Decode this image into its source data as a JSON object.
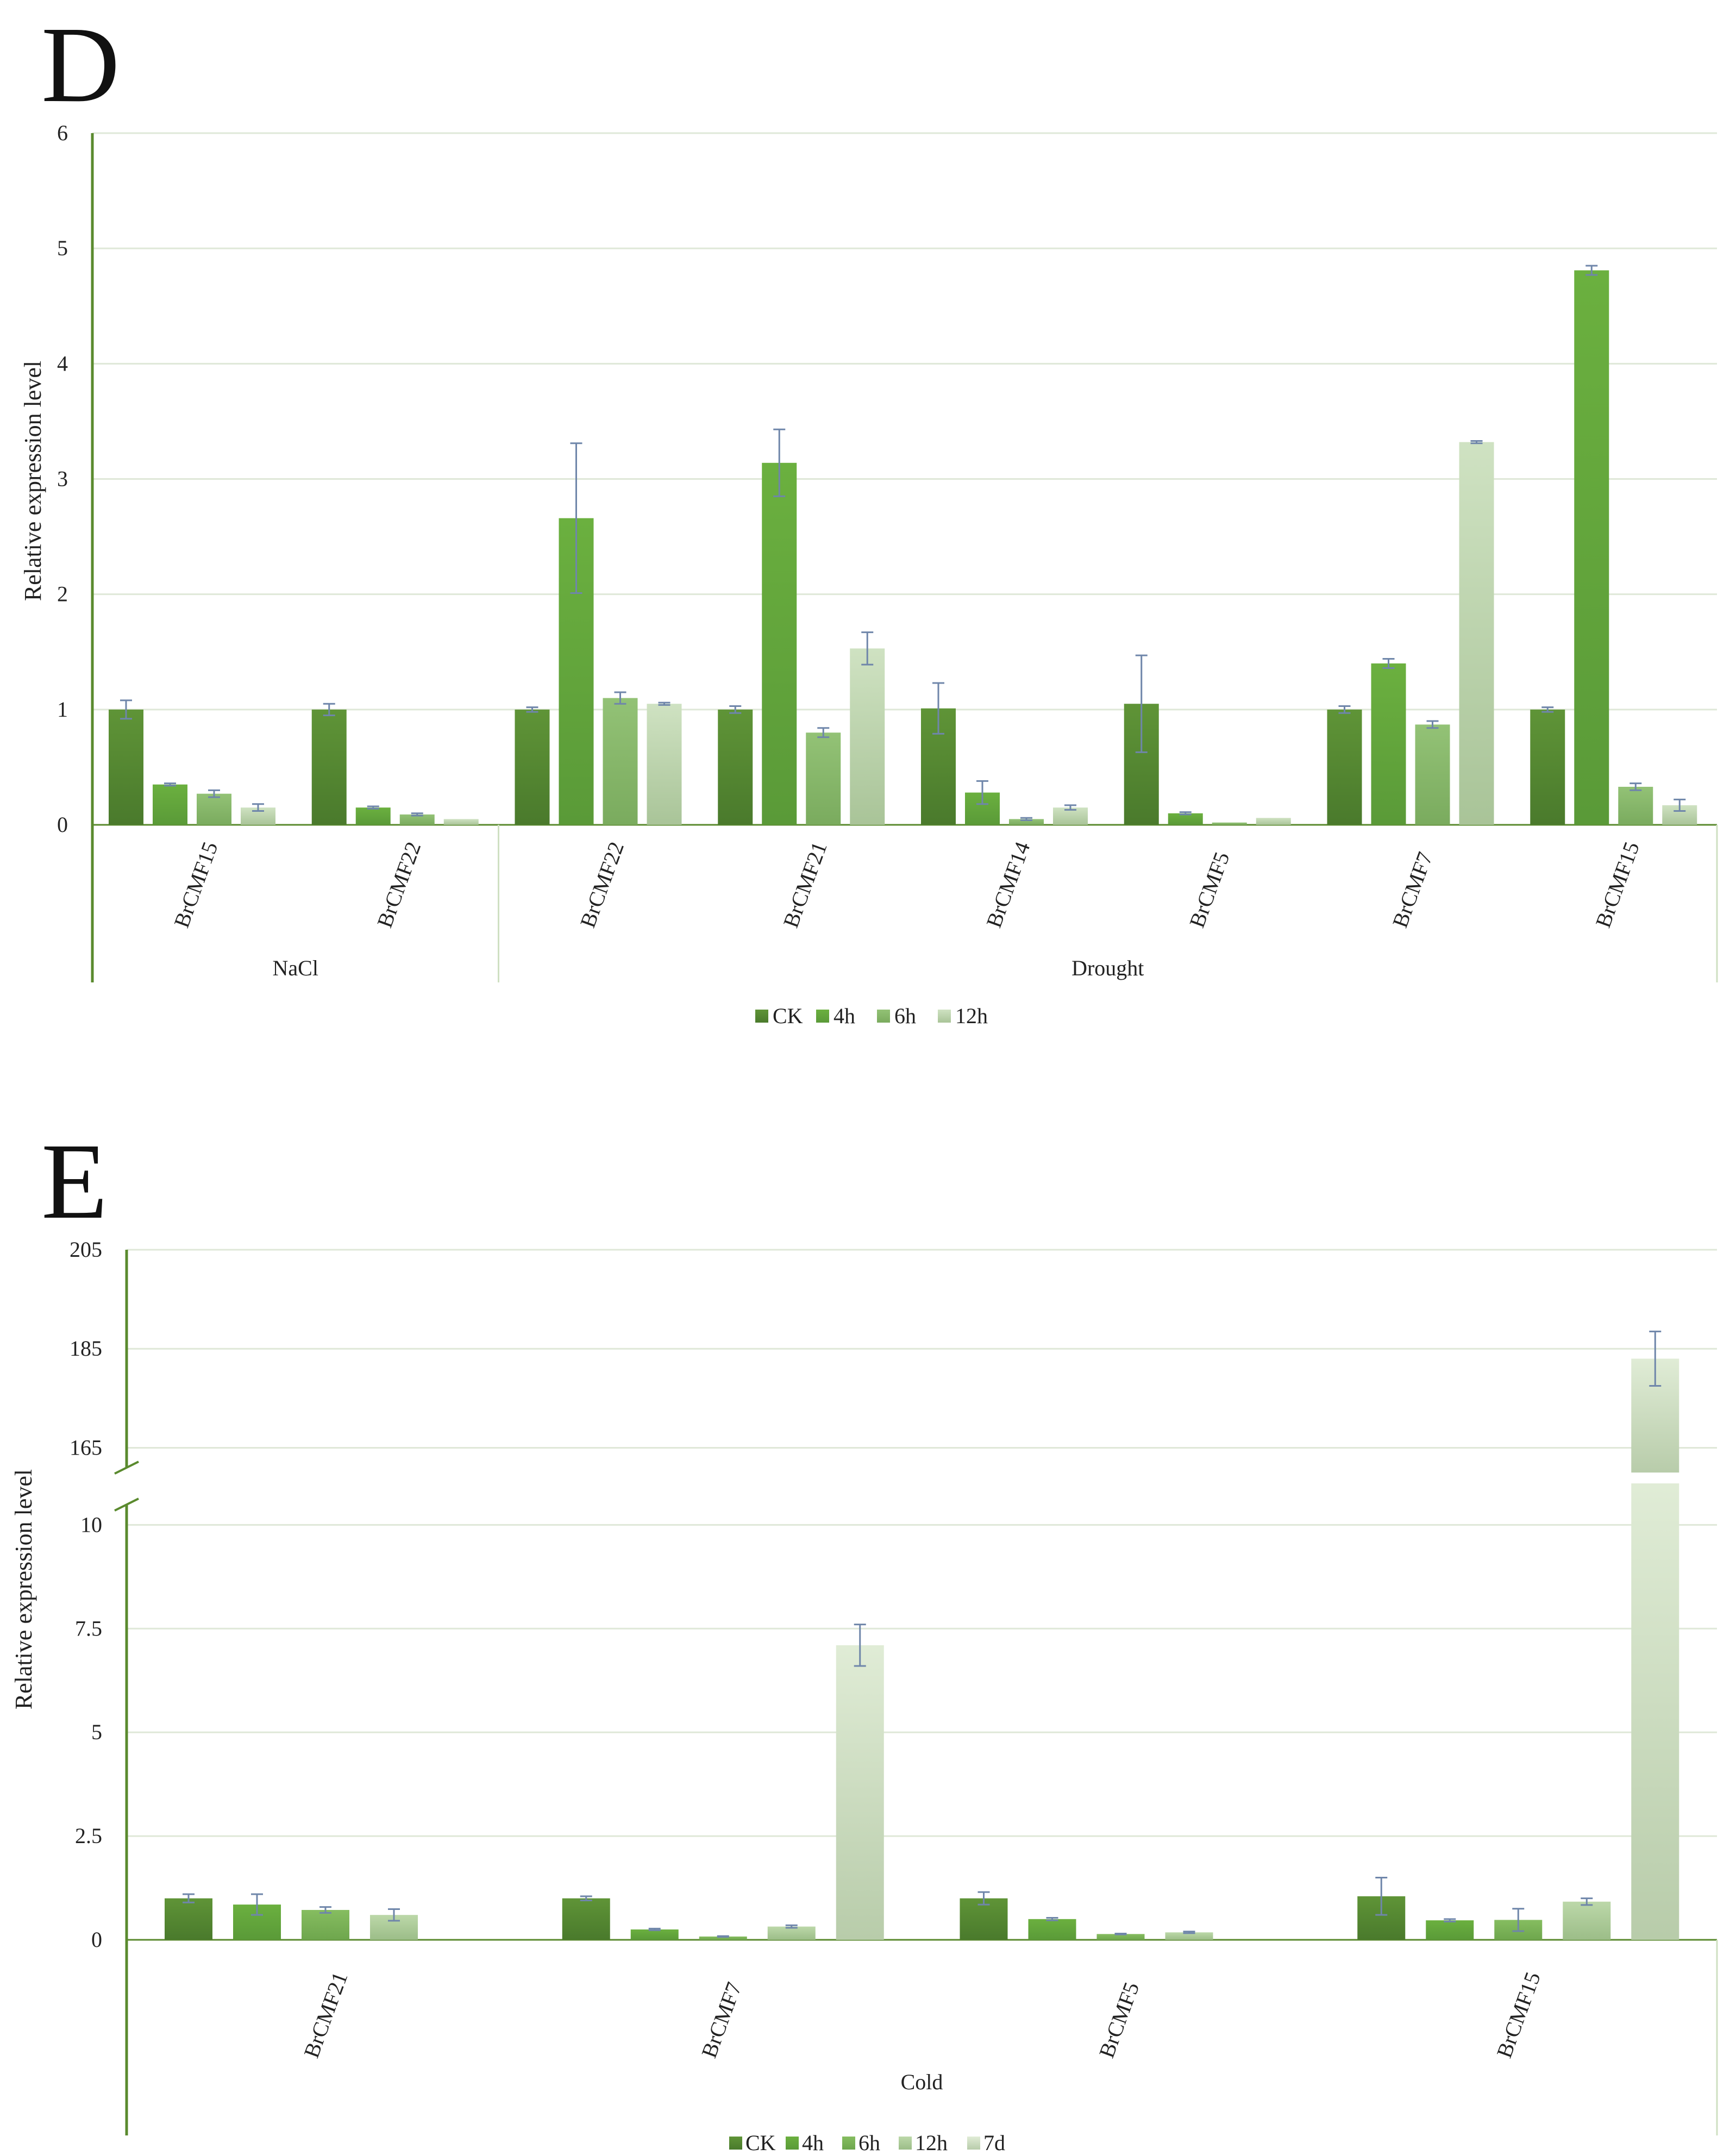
{
  "panels": {
    "d_label": "D",
    "e_label": "E"
  },
  "chart_data": [
    {
      "id": "D",
      "type": "bar",
      "ylabel": "Relative expression level",
      "ylim": [
        0,
        6
      ],
      "yticks": [
        "0",
        "1",
        "2",
        "3",
        "4",
        "5",
        "6"
      ],
      "categories": [
        "BrCMF15",
        "BrCMF22",
        "BrCMF22",
        "BrCMF21",
        "BrCMF14",
        "BrCMF5",
        "BrCMF7",
        "BrCMF15"
      ],
      "groups": [
        {
          "label": "NaCl",
          "count": 2
        },
        {
          "label": "Drought",
          "count": 6
        }
      ],
      "series": [
        {
          "name": "CK",
          "color": "#4e7f2e",
          "values": [
            1.0,
            1.0,
            1.0,
            1.0,
            1.01,
            1.05,
            1.0,
            1.0
          ],
          "errors": [
            0.08,
            0.05,
            0.02,
            0.03,
            0.22,
            0.42,
            0.03,
            0.02
          ]
        },
        {
          "name": "4h",
          "color": "#5ea33a",
          "values": [
            0.35,
            0.15,
            2.66,
            3.14,
            0.28,
            0.1,
            1.4,
            4.81
          ],
          "errors": [
            0.01,
            0.01,
            0.65,
            0.29,
            0.1,
            0.01,
            0.04,
            0.04
          ]
        },
        {
          "name": "6h",
          "color": "#86b866",
          "values": [
            0.27,
            0.09,
            1.1,
            0.8,
            0.05,
            0.02,
            0.87,
            0.33
          ],
          "errors": [
            0.03,
            0.01,
            0.05,
            0.04,
            0.01,
            0.0,
            0.03,
            0.03
          ]
        },
        {
          "name": "12h",
          "color": "#b9d3a4",
          "values": [
            0.15,
            0.05,
            1.05,
            1.53,
            0.15,
            0.06,
            3.32,
            0.17
          ],
          "errors": [
            0.03,
            0.0,
            0.01,
            0.14,
            0.02,
            0.0,
            0.01,
            0.05
          ]
        }
      ],
      "legend": [
        "CK",
        "4h",
        "6h",
        "12h"
      ]
    },
    {
      "id": "E",
      "type": "bar",
      "ylabel": "Relative expression level",
      "broken_axis": true,
      "ylim_lower": [
        0,
        11
      ],
      "ylim_upper": [
        160,
        205
      ],
      "yticks_lower": [
        "0",
        "2.5",
        "5",
        "7.5",
        "10"
      ],
      "yticks_upper": [
        "165",
        "185",
        "205"
      ],
      "categories": [
        "BrCMF21",
        "BrCMF7",
        "BrCMF5",
        "BrCMF15"
      ],
      "groups": [
        {
          "label": "Cold",
          "count": 4
        }
      ],
      "series": [
        {
          "name": "CK",
          "color": "#4e7f2e",
          "values": [
            1.0,
            1.0,
            1.0,
            1.05
          ],
          "errors": [
            0.1,
            0.05,
            0.15,
            0.45
          ]
        },
        {
          "name": "4h",
          "color": "#5ea33a",
          "values": [
            0.85,
            0.25,
            0.5,
            0.47
          ],
          "errors": [
            0.25,
            0.02,
            0.03,
            0.03
          ]
        },
        {
          "name": "6h",
          "color": "#77b04f",
          "values": [
            0.72,
            0.08,
            0.14,
            0.48
          ],
          "errors": [
            0.07,
            0.01,
            0.01,
            0.27
          ]
        },
        {
          "name": "12h",
          "color": "#a8c893",
          "values": [
            0.6,
            0.32,
            0.18,
            0.92
          ],
          "errors": [
            0.14,
            0.03,
            0.02,
            0.08
          ]
        },
        {
          "name": "7d",
          "color": "#d6e6ca",
          "values": [
            null,
            7.1,
            null,
            183
          ],
          "errors": [
            null,
            0.5,
            null,
            5.5
          ]
        }
      ],
      "legend": [
        "CK",
        "4h",
        "6h",
        "12h",
        "7d"
      ]
    }
  ]
}
